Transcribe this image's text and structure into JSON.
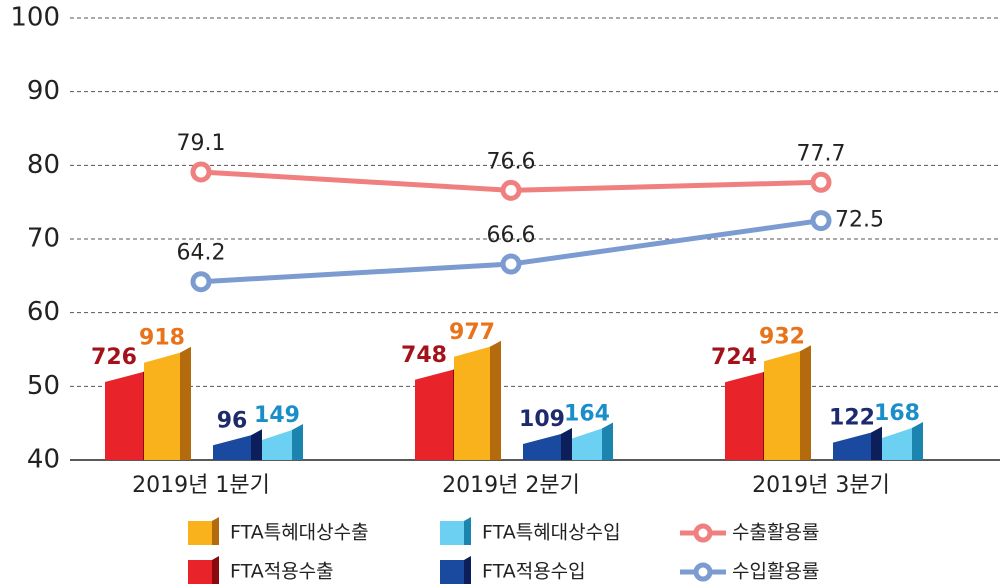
{
  "chart_data": {
    "type": "bar-line",
    "categories": [
      "2019년 1분기",
      "2019년 2분기",
      "2019년 3분기"
    ],
    "ylim": [
      40,
      100
    ],
    "yticks": [
      40,
      50,
      60,
      70,
      80,
      90,
      100
    ],
    "grid": true,
    "y2lim": [
      -150,
      4250
    ],
    "series": [
      {
        "name": "FTA적용수출",
        "kind": "bar",
        "axis": "y2",
        "color": "#e8232a",
        "values": [
          726,
          748,
          724
        ]
      },
      {
        "name": "FTA특혜대상수출",
        "kind": "bar",
        "axis": "y2",
        "color": "#f9b21b",
        "values": [
          918,
          977,
          932
        ]
      },
      {
        "name": "FTA적용수입",
        "kind": "bar",
        "axis": "y2",
        "color": "#1a4aa0",
        "values": [
          96,
          109,
          122
        ]
      },
      {
        "name": "FTA특혜대상수입",
        "kind": "bar",
        "axis": "y2",
        "color": "#6cd0f2",
        "values": [
          149,
          164,
          168
        ]
      },
      {
        "name": "수출활용률",
        "kind": "line",
        "color": "#f08080",
        "values": [
          79.1,
          76.6,
          77.7
        ]
      },
      {
        "name": "수입활용률",
        "kind": "line",
        "color": "#7b9bd1",
        "values": [
          64.2,
          66.6,
          72.5
        ]
      }
    ]
  }
}
